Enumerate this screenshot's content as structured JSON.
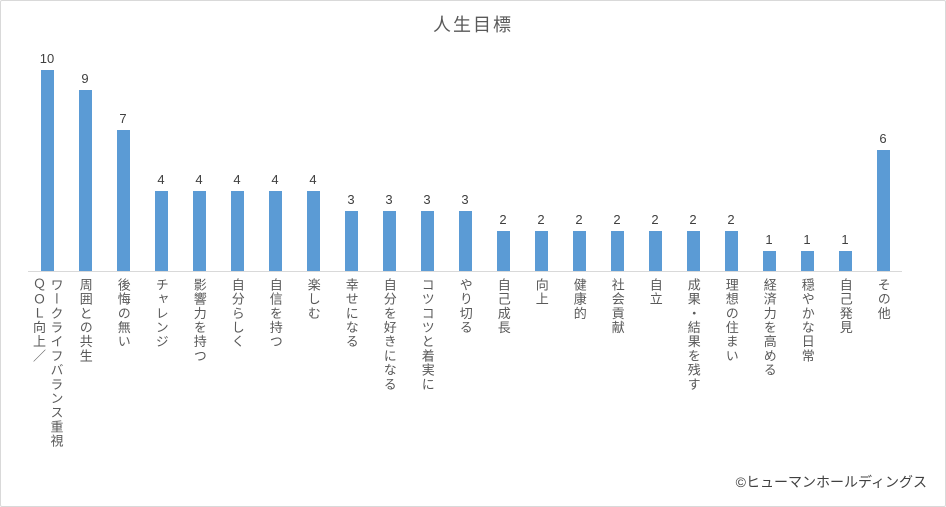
{
  "chart": {
    "title": "人生目標",
    "credit": "©ヒューマンホールディングス"
  },
  "chart_data": {
    "type": "bar",
    "title": "人生目標",
    "categories": [
      "ＱＯＬ向上／\nワークライフバランス重視",
      "周囲との共生",
      "後悔の無い",
      "チャレンジ",
      "影響力を持つ",
      "自分らしく",
      "自信を持つ",
      "楽しむ",
      "幸せになる",
      "自分を好きになる",
      "コツコツと着実に",
      "やり切る",
      "自己成長",
      "向上",
      "健康的",
      "社会貢献",
      "自立",
      "成果・結果を残す",
      "理想の住まい",
      "経済力を高める",
      "穏やかな日常",
      "自己発見",
      "その他"
    ],
    "values": [
      10,
      9,
      7,
      4,
      4,
      4,
      4,
      4,
      3,
      3,
      3,
      3,
      2,
      2,
      2,
      2,
      2,
      2,
      2,
      1,
      1,
      1,
      6
    ],
    "xlabel": "",
    "ylabel": "",
    "ylim": [
      0,
      10
    ],
    "grid": false,
    "legend": false,
    "data_labels": true,
    "category_label_orientation": "vertical",
    "annotations": [
      "©ヒューマンホールディングス"
    ]
  },
  "colors": {
    "bar": "#5b9bd5",
    "border": "#d9d9d9",
    "axis_line": "#d9d9d9",
    "title_text": "#595959",
    "category_text": "#595959",
    "value_text": "#404040",
    "credit_text": "#404040"
  }
}
